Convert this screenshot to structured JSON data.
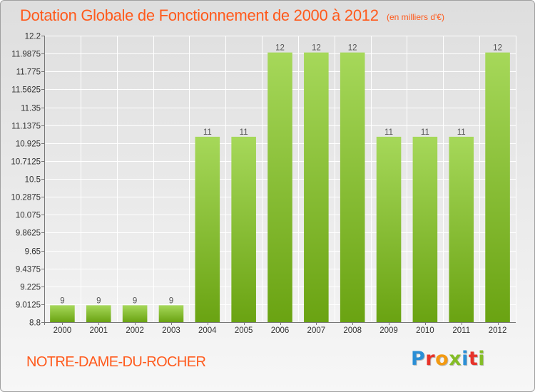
{
  "header": {
    "title": "Dotation Globale de Fonctionnement de 2000 à 2012",
    "unit": "(en milliers d'€)"
  },
  "footer": {
    "commune": "NOTRE-DAME-DU-ROCHER",
    "logo": "Proxiti"
  },
  "chart_data": {
    "type": "bar",
    "title": "Dotation Globale de Fonctionnement de 2000 à 2012",
    "subtitle": "(en milliers d'€)",
    "xlabel": "",
    "ylabel": "",
    "categories": [
      "2000",
      "2001",
      "2002",
      "2003",
      "2004",
      "2005",
      "2006",
      "2007",
      "2008",
      "2009",
      "2010",
      "2011",
      "2012"
    ],
    "values": [
      9,
      9,
      9,
      9,
      11,
      11,
      12,
      12,
      12,
      11,
      11,
      11,
      12
    ],
    "data_labels": [
      "9",
      "9",
      "9",
      "9",
      "11",
      "11",
      "12",
      "12",
      "12",
      "11",
      "11",
      "11",
      "12"
    ],
    "ylim": [
      8.8,
      12.2
    ],
    "yticks": [
      8.8,
      9.0125,
      9.225,
      9.4375,
      9.65,
      9.8625,
      10.075,
      10.2875,
      10.5,
      10.7125,
      10.925,
      11.1375,
      11.35,
      11.5625,
      11.775,
      11.9875,
      12.2
    ],
    "ytick_labels": [
      "8.8",
      "9.0125",
      "9.225",
      "9.4375",
      "9.65",
      "9.8625",
      "10.075",
      "10.2875",
      "10.5",
      "10.7125",
      "10.925",
      "11.1375",
      "11.35",
      "11.5625",
      "11.775",
      "11.9875",
      "12.2"
    ],
    "grid": true,
    "legend": "none",
    "colors": {
      "bar_light": "#a6d85a",
      "bar_dark": "#6aa312",
      "grid": "#ffffff",
      "axis": "#777777",
      "title": "#ff5a1c"
    }
  },
  "logo_colors": [
    "#2b8fd6",
    "#e7332a",
    "#f39a11",
    "#84bd26",
    "#2b8fd6",
    "#e7332a",
    "#84bd26"
  ]
}
